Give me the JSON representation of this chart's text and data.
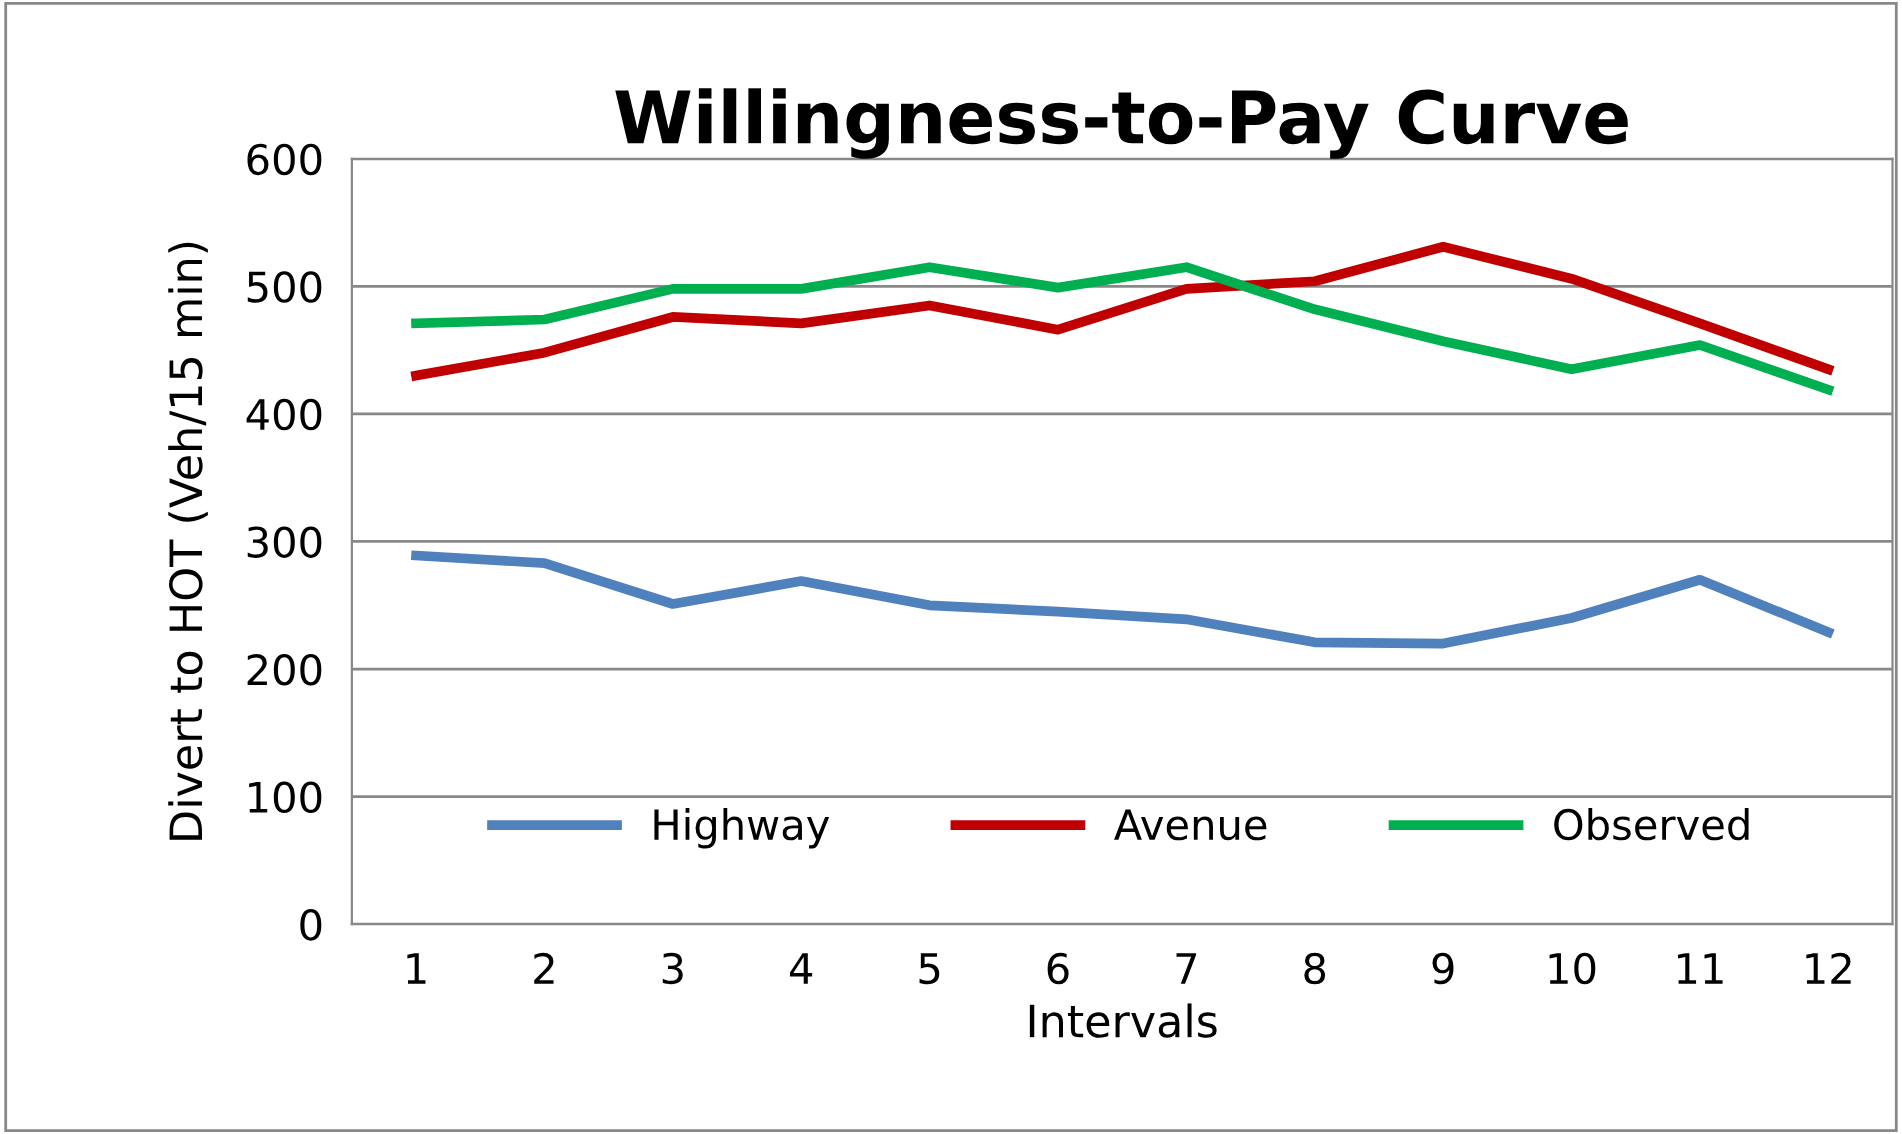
{
  "chart_data": {
    "type": "line",
    "title": "Willingness-to-Pay Curve",
    "xlabel": "Intervals",
    "ylabel": "Divert to HOT (Veh/15 min)",
    "categories": [
      "1",
      "2",
      "3",
      "4",
      "5",
      "6",
      "7",
      "8",
      "9",
      "10",
      "11",
      "12"
    ],
    "series": [
      {
        "name": "Highway",
        "color": "#4f81bd",
        "values": [
          289,
          283,
          251,
          269,
          250,
          245,
          239,
          221,
          220,
          240,
          270,
          229
        ]
      },
      {
        "name": "Avenue",
        "color": "#c00000",
        "values": [
          430,
          448,
          476,
          471,
          485,
          466,
          498,
          504,
          531,
          506,
          471,
          435
        ]
      },
      {
        "name": "Observed",
        "color": "#00b050",
        "values": [
          471,
          474,
          498,
          498,
          515,
          499,
          515,
          482,
          457,
          435,
          454,
          419
        ]
      }
    ],
    "ylim": [
      0,
      600
    ],
    "yticks": [
      0,
      100,
      200,
      300,
      400,
      500,
      600
    ],
    "grid": "y",
    "legend": "bottom",
    "marker": "none",
    "line_style": "solid"
  }
}
